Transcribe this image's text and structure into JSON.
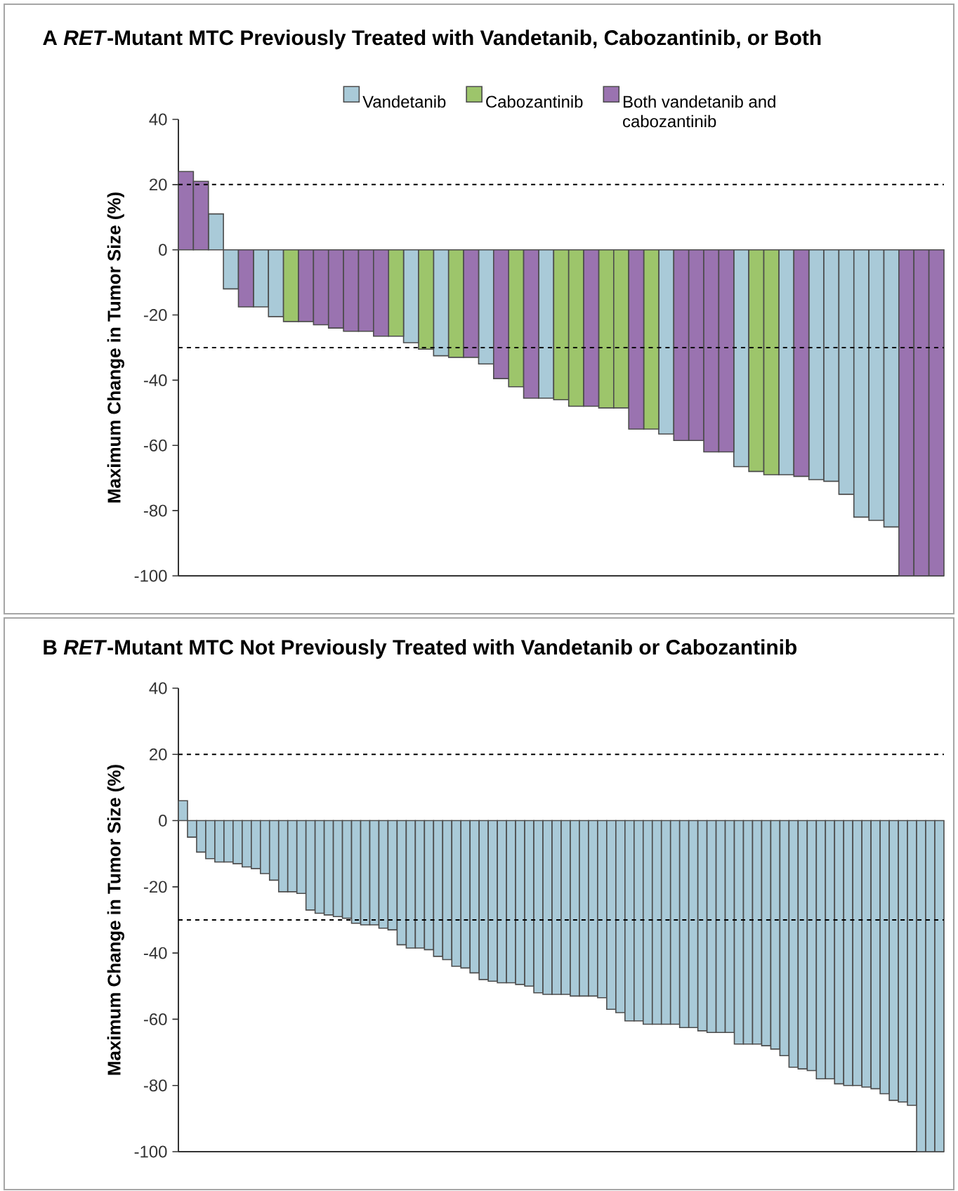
{
  "chart_data": [
    {
      "type": "bar",
      "title": "A *RET*-Mutant MTC Previously Treated with Vandetanib, Cabozantinib, or Both",
      "ylabel": "Maximum Change in Tumor Size (%)",
      "categories": [
        null,
        null,
        null,
        null,
        null,
        null,
        null,
        null,
        null,
        null,
        null,
        null,
        null,
        null,
        null,
        null,
        null,
        null,
        null,
        null,
        null,
        null,
        null,
        null,
        null,
        null,
        null,
        null,
        null,
        null,
        null,
        null,
        null,
        null,
        null,
        null,
        null,
        null,
        null,
        null,
        null,
        null,
        null,
        null,
        null,
        null,
        null,
        null,
        null,
        null,
        null
      ],
      "series": [
        {
          "name": "Vandetanib",
          "color": "#a9cad8",
          "values": [
            null,
            null,
            11,
            -12,
            null,
            -17.5,
            -20.5,
            null,
            null,
            null,
            null,
            null,
            null,
            null,
            null,
            -28.5,
            null,
            -32.5,
            null,
            null,
            -35,
            null,
            null,
            null,
            -45.5,
            null,
            null,
            null,
            null,
            null,
            null,
            null,
            -56.5,
            null,
            null,
            null,
            null,
            -66.5,
            null,
            null,
            -69,
            null,
            -70.5,
            -71,
            -75,
            -82,
            -83,
            -85,
            null,
            null,
            null
          ]
        },
        {
          "name": "Cabozantinib",
          "color": "#9dc56b",
          "values": [
            null,
            null,
            null,
            null,
            null,
            null,
            null,
            -22,
            null,
            null,
            null,
            null,
            null,
            null,
            -26.5,
            null,
            -30.5,
            null,
            -33,
            null,
            null,
            null,
            -42,
            null,
            null,
            -46,
            -48,
            null,
            -48.5,
            -48.5,
            null,
            -55,
            null,
            null,
            null,
            null,
            null,
            null,
            -68,
            -69,
            null,
            null,
            null,
            null,
            null,
            null,
            null,
            null,
            null,
            null,
            null
          ]
        },
        {
          "name": "Both vandetanib and cabozantinib",
          "color": "#9a73b0",
          "values": [
            24,
            21,
            null,
            null,
            -17.5,
            null,
            null,
            null,
            -22,
            -23,
            -24,
            -25,
            -25,
            -26.5,
            null,
            null,
            null,
            null,
            null,
            -33,
            null,
            -39.5,
            null,
            -45.5,
            null,
            null,
            null,
            -48,
            null,
            null,
            -55,
            null,
            null,
            -58.5,
            -58.5,
            -62,
            -62,
            null,
            null,
            null,
            null,
            -69.5,
            null,
            null,
            null,
            null,
            null,
            null,
            -100,
            -100,
            -100
          ]
        }
      ],
      "ylim": [
        -100,
        40
      ],
      "yticks": [
        -100,
        -80,
        -60,
        -40,
        -20,
        0,
        20,
        40
      ],
      "tick_labels": "y",
      "legend": "top",
      "ref_lines": [
        {
          "axis": "y",
          "value": 20,
          "line_style": "dashed"
        },
        {
          "axis": "y",
          "value": -30,
          "line_style": "dashed"
        }
      ]
    },
    {
      "type": "bar",
      "title": "B *RET*-Mutant MTC Not Previously Treated with Vandetanib or Cabozantinib",
      "ylabel": "Maximum Change in Tumor Size (%)",
      "categories": [
        null,
        null,
        null,
        null,
        null,
        null,
        null,
        null,
        null,
        null,
        null,
        null,
        null,
        null,
        null,
        null,
        null,
        null,
        null,
        null,
        null,
        null,
        null,
        null,
        null,
        null,
        null,
        null,
        null,
        null,
        null,
        null,
        null,
        null,
        null,
        null,
        null,
        null,
        null,
        null,
        null,
        null,
        null,
        null,
        null,
        null,
        null,
        null,
        null,
        null,
        null,
        null,
        null,
        null,
        null,
        null,
        null,
        null,
        null,
        null,
        null,
        null,
        null,
        null,
        null,
        null,
        null,
        null,
        null,
        null,
        null,
        null,
        null,
        null,
        null,
        null,
        null,
        null,
        null,
        null,
        null,
        null,
        null,
        null
      ],
      "values": [
        6,
        -5,
        -9.5,
        -11.5,
        -12.5,
        -12.5,
        -13,
        -14,
        -14.5,
        -16,
        -18,
        -21.5,
        -21.5,
        -22,
        -27,
        -28,
        -28.5,
        -29,
        -29.5,
        -31,
        -31.5,
        -31.5,
        -32.5,
        -33,
        -37.5,
        -38.5,
        -38.5,
        -39,
        -41,
        -42,
        -44,
        -44.5,
        -46,
        -48,
        -48.5,
        -49,
        -49,
        -49.5,
        -50,
        -52,
        -52.5,
        -52.5,
        -52.5,
        -53,
        -53,
        -53,
        -53.5,
        -57,
        -58,
        -60.5,
        -60.5,
        -61.5,
        -61.5,
        -61.5,
        -61.5,
        -62.5,
        -62.5,
        -63.5,
        -64,
        -64,
        -64,
        -67.5,
        -67.5,
        -67.5,
        -68,
        -69,
        -71,
        -74.5,
        -75,
        -75.5,
        -78,
        -78,
        -79.5,
        -80,
        -80,
        -80.5,
        -81,
        -82.5,
        -84.5,
        -85,
        -86,
        -100,
        -100,
        -100
      ],
      "color": "#a9cad8",
      "ylim": [
        -100,
        40
      ],
      "yticks": [
        -100,
        -80,
        -60,
        -40,
        -20,
        0,
        20,
        40
      ],
      "tick_labels": "y",
      "ref_lines": [
        {
          "axis": "y",
          "value": 20,
          "line_style": "dashed"
        },
        {
          "axis": "y",
          "value": -30,
          "line_style": "dashed"
        }
      ]
    }
  ]
}
